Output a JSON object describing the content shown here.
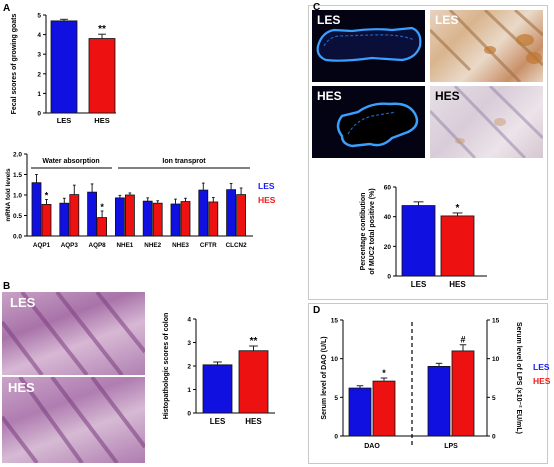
{
  "panels": {
    "a": "A",
    "b": "B",
    "c": "C",
    "d": "D"
  },
  "colors": {
    "les": "#1010e0",
    "hes": "#ee1111",
    "les_text": "#1a1aee",
    "hes_text": "#ee1a1a"
  },
  "chart_data": [
    {
      "id": "a1",
      "type": "bar",
      "categories": [
        "LES",
        "HES"
      ],
      "values": [
        4.7,
        3.8
      ],
      "errors": [
        0.08,
        0.22
      ],
      "ylabel": "Fecal scores of growing goats",
      "ylim": [
        0,
        5
      ],
      "yticks": [
        "0",
        "1",
        "2",
        "3",
        "4",
        "5"
      ],
      "annotations": [
        {
          "category": "HES",
          "text": "**"
        }
      ]
    },
    {
      "id": "a2",
      "type": "bar",
      "categories": [
        "AQP1",
        "AQP3",
        "AQP8",
        "NHE1",
        "NHE2",
        "NHE3",
        "CFTR",
        "CLCN2"
      ],
      "groups": [
        {
          "label": "Water absorption"
        },
        {
          "label": "Ion transprot"
        }
      ],
      "series": [
        {
          "name": "LES",
          "values": [
            1.3,
            0.8,
            1.07,
            0.93,
            0.85,
            0.78,
            1.12,
            1.13
          ],
          "errors": [
            0.2,
            0.12,
            0.2,
            0.06,
            0.08,
            0.12,
            0.17,
            0.15
          ]
        },
        {
          "name": "HES",
          "values": [
            0.77,
            1.01,
            0.45,
            1.0,
            0.8,
            0.84,
            0.83,
            1.01
          ],
          "errors": [
            0.12,
            0.23,
            0.16,
            0.05,
            0.06,
            0.08,
            0.11,
            0.16
          ]
        }
      ],
      "ylabel": "mRNA fold levels",
      "ylim": [
        0,
        2
      ],
      "yticks": [
        "0.0",
        "0.5",
        "1.0",
        "1.5",
        "2.0"
      ],
      "annotations": [
        {
          "category": "AQP1",
          "series": "HES",
          "text": "*"
        },
        {
          "category": "AQP8",
          "series": "HES",
          "text": "*"
        }
      ]
    },
    {
      "id": "b",
      "type": "bar",
      "categories": [
        "LES",
        "HES"
      ],
      "values": [
        2.05,
        2.65
      ],
      "errors": [
        0.12,
        0.2
      ],
      "ylabel": "Histopathologic scores of colon",
      "ylim": [
        0,
        4
      ],
      "yticks": [
        "0",
        "1",
        "2",
        "3",
        "4"
      ],
      "annotations": [
        {
          "category": "HES",
          "text": "**"
        }
      ]
    },
    {
      "id": "c",
      "type": "bar",
      "categories": [
        "LES",
        "HES"
      ],
      "values": [
        47.5,
        40.5
      ],
      "errors": [
        2.5,
        2.0
      ],
      "ylabel": "Percentage contibution of MUC2 total positive (%)",
      "ylim": [
        0,
        60
      ],
      "yticks": [
        "0",
        "20",
        "40",
        "60"
      ],
      "annotations": [
        {
          "category": "HES",
          "text": "*"
        }
      ]
    },
    {
      "id": "d",
      "type": "bar",
      "categories": [
        "DAO",
        "LPS"
      ],
      "series": [
        {
          "name": "LES",
          "values": [
            6.2,
            9.0
          ],
          "errors": [
            0.3,
            0.4
          ]
        },
        {
          "name": "HES",
          "values": [
            7.1,
            11.0
          ],
          "errors": [
            0.4,
            0.8
          ]
        }
      ],
      "ylabel": "Serum level of DAO (U/L)",
      "y2label": "Serum level of LPS (×10⁻² EU/mL)",
      "ylim": [
        0,
        15
      ],
      "yticks": [
        "0",
        "5",
        "10",
        "15"
      ],
      "y2ticks": [
        "0",
        "5",
        "10",
        "15"
      ],
      "annotations": [
        {
          "category": "DAO",
          "series": "HES",
          "text": "*"
        },
        {
          "category": "LPS",
          "series": "HES",
          "text": "#"
        }
      ]
    }
  ],
  "images": {
    "c_top_left": "LES",
    "c_top_right": "LES",
    "c_bottom_left": "HES",
    "c_bottom_right": "HES",
    "b_top": "LES",
    "b_bottom": "HES"
  }
}
